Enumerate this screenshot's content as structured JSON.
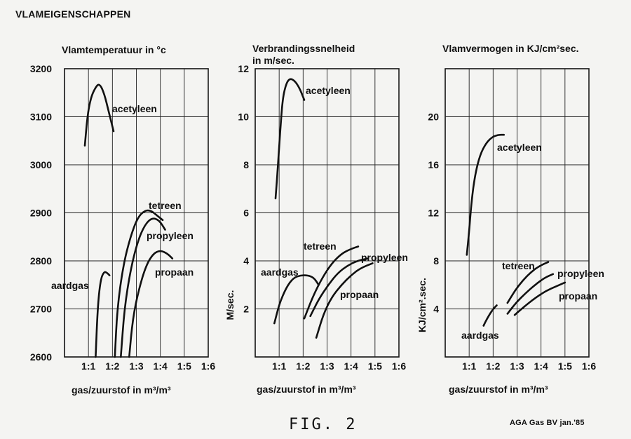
{
  "page": {
    "title": "VLAMEIGENSCHAPPEN",
    "caption": "FIG. 2",
    "credit": "AGA Gas BV   jan.'85"
  },
  "chart_data": [
    {
      "type": "line",
      "title": "Vlamtemperatuur in °c",
      "title2": "",
      "xlabel": "gas/zuurstof in m³/m³",
      "ylabel": "",
      "x_ticks": [
        "1:1",
        "1:2",
        "1:3",
        "1:4",
        "1:5",
        "1:6"
      ],
      "xlim": [
        0,
        6
      ],
      "ylim": [
        2600,
        3200
      ],
      "y_ticks": [
        2600,
        2700,
        2800,
        2900,
        3000,
        3100,
        3200
      ],
      "series": [
        {
          "name": "acetyleen",
          "x": [
            0.85,
            0.95,
            1.1,
            1.28,
            1.45,
            1.65,
            1.85,
            2.05
          ],
          "y": [
            3040,
            3100,
            3140,
            3160,
            3170,
            3150,
            3110,
            3070
          ]
        },
        {
          "name": "tetreen",
          "x": [
            2.1,
            2.2,
            2.45,
            2.75,
            3.05,
            3.35,
            3.6,
            3.85,
            4.1
          ],
          "y": [
            2600,
            2700,
            2790,
            2850,
            2890,
            2905,
            2905,
            2895,
            2885
          ]
        },
        {
          "name": "propyleen",
          "x": [
            2.35,
            2.5,
            2.75,
            3.05,
            3.35,
            3.65,
            3.95,
            4.2
          ],
          "y": [
            2600,
            2700,
            2780,
            2840,
            2875,
            2890,
            2885,
            2865
          ]
        },
        {
          "name": "propaan",
          "x": [
            2.7,
            2.85,
            3.1,
            3.4,
            3.7,
            4.0,
            4.3,
            4.5
          ],
          "y": [
            2600,
            2680,
            2740,
            2790,
            2815,
            2822,
            2815,
            2805
          ]
        },
        {
          "name": "aardgas",
          "x": [
            1.3,
            1.38,
            1.5,
            1.65,
            1.78,
            1.88
          ],
          "y": [
            2600,
            2700,
            2760,
            2778,
            2775,
            2770
          ]
        }
      ]
    },
    {
      "type": "line",
      "title": "Verbrandingssnelheid",
      "title2": "in m/sec.",
      "xlabel": "gas/zuurstof in m³/m³",
      "ylabel": "M/sec.",
      "x_ticks": [
        "1:1",
        "1:2",
        "1:3",
        "1:4",
        "1:5",
        "1:6"
      ],
      "xlim": [
        0,
        6
      ],
      "ylim": [
        0,
        12
      ],
      "y_ticks": [
        2,
        4,
        6,
        8,
        10,
        12
      ],
      "series": [
        {
          "name": "acetyleen",
          "x": [
            0.85,
            0.95,
            1.05,
            1.15,
            1.3,
            1.45,
            1.65,
            1.85,
            2.05
          ],
          "y": [
            6.6,
            8.0,
            9.5,
            10.8,
            11.4,
            11.6,
            11.5,
            11.2,
            10.7
          ]
        },
        {
          "name": "tetreen",
          "x": [
            2.05,
            2.4,
            2.8,
            3.2,
            3.6,
            4.0,
            4.3
          ],
          "y": [
            1.6,
            2.5,
            3.3,
            3.9,
            4.3,
            4.5,
            4.6
          ]
        },
        {
          "name": "propyleen",
          "x": [
            2.3,
            2.65,
            3.05,
            3.45,
            3.85,
            4.25,
            4.7
          ],
          "y": [
            1.7,
            2.4,
            3.0,
            3.5,
            3.8,
            4.0,
            4.1
          ]
        },
        {
          "name": "propaan",
          "x": [
            2.55,
            2.85,
            3.2,
            3.6,
            4.0,
            4.4,
            4.9
          ],
          "y": [
            0.8,
            1.8,
            2.5,
            3.0,
            3.4,
            3.7,
            3.9
          ]
        },
        {
          "name": "aardgas",
          "x": [
            0.8,
            1.0,
            1.3,
            1.6,
            1.9,
            2.2,
            2.45,
            2.65
          ],
          "y": [
            1.4,
            2.2,
            2.9,
            3.3,
            3.4,
            3.4,
            3.3,
            3.0
          ]
        }
      ]
    },
    {
      "type": "line",
      "title": "Vlamvermogen in KJ/cm²sec.",
      "title2": "",
      "xlabel": "gas/zuurstof in m³/m³",
      "ylabel": "KJ/cm².sec.",
      "x_ticks": [
        "1:1",
        "1:2",
        "1:3",
        "1:4",
        "1:5",
        "1:6"
      ],
      "xlim": [
        0,
        6
      ],
      "ylim": [
        0,
        24
      ],
      "y_ticks": [
        4,
        8,
        12,
        16,
        20
      ],
      "series": [
        {
          "name": "acetyleen",
          "x": [
            0.9,
            1.0,
            1.1,
            1.25,
            1.45,
            1.7,
            1.95,
            2.2,
            2.45
          ],
          "y": [
            8.5,
            10.5,
            13.0,
            15.2,
            16.8,
            17.8,
            18.3,
            18.5,
            18.5
          ]
        },
        {
          "name": "tetreen",
          "x": [
            2.6,
            2.9,
            3.25,
            3.6,
            3.95,
            4.3
          ],
          "y": [
            4.5,
            5.5,
            6.4,
            7.1,
            7.6,
            7.9
          ]
        },
        {
          "name": "propyleen",
          "x": [
            2.6,
            2.95,
            3.35,
            3.75,
            4.15,
            4.5
          ],
          "y": [
            3.6,
            4.5,
            5.3,
            6.0,
            6.6,
            6.9
          ]
        },
        {
          "name": "propaan",
          "x": [
            2.9,
            3.3,
            3.75,
            4.2,
            4.65,
            5.0
          ],
          "y": [
            3.5,
            4.2,
            4.9,
            5.5,
            5.9,
            6.2
          ]
        },
        {
          "name": "aardgas",
          "x": [
            1.6,
            1.75,
            1.9,
            2.05,
            2.15
          ],
          "y": [
            2.6,
            3.2,
            3.7,
            4.1,
            4.3
          ]
        }
      ]
    }
  ]
}
